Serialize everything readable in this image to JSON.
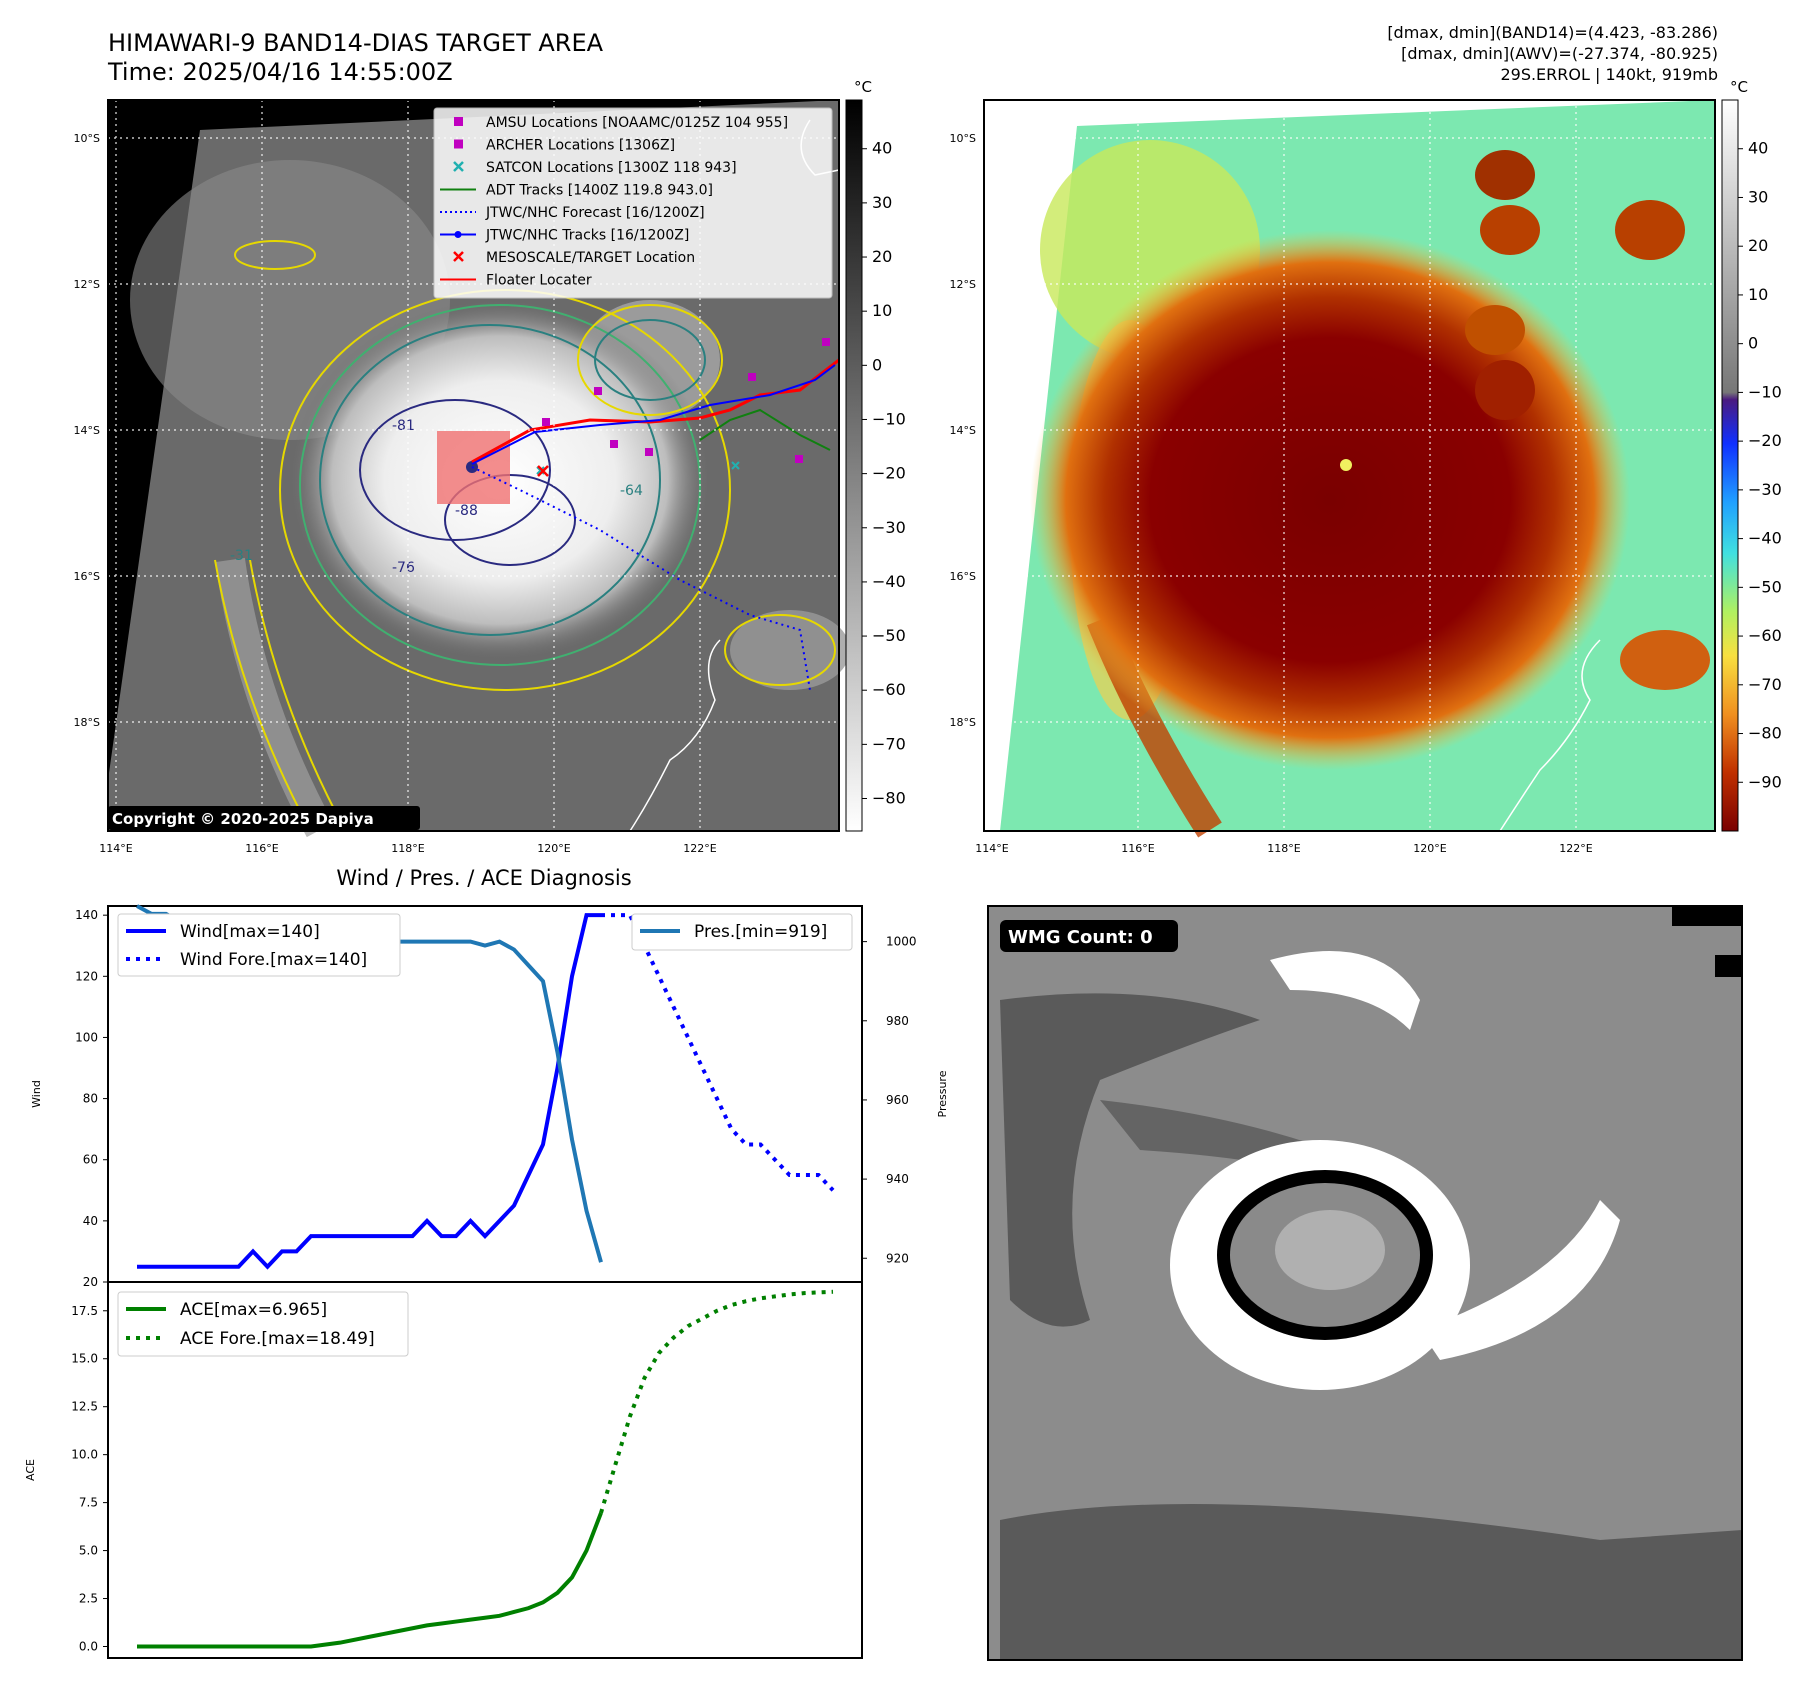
{
  "header": {
    "title_line1": "HIMAWARI-9 BAND14-DIAS TARGET AREA",
    "title_line2": "Time: 2025/04/16 14:55:00Z",
    "info_line1": "[dmax, dmin](BAND14)=(4.423, -83.286)",
    "info_line2": "[dmax, dmin](AWV)=(-27.374, -80.925)",
    "info_line3": "29S.ERROL | 140kt, 919mb"
  },
  "map_axes": {
    "lat_labels": [
      "10°S",
      "12°S",
      "14°S",
      "16°S",
      "18°S"
    ],
    "lon_labels": [
      "114°E",
      "116°E",
      "118°E",
      "120°E",
      "122°E"
    ],
    "copyright": "Copyright © 2020-2025 Dapiya"
  },
  "contour_labels": [
    "-81",
    "-76",
    "-88",
    "-64",
    "-31"
  ],
  "colorbar_left": {
    "unit": "°C",
    "ticks": [
      "40",
      "30",
      "20",
      "10",
      "0",
      "−10",
      "−20",
      "−30",
      "−40",
      "−50",
      "−60",
      "−70",
      "−80"
    ]
  },
  "colorbar_right": {
    "unit": "°C",
    "ticks": [
      "40",
      "30",
      "20",
      "10",
      "0",
      "−10",
      "−20",
      "−30",
      "−40",
      "−50",
      "−60",
      "−70",
      "−80",
      "−90"
    ]
  },
  "legend_map": [
    {
      "label": "AMSU Locations [NOAAMC/0125Z 104 955]",
      "color": "#c000c0",
      "marker": "square"
    },
    {
      "label": "ARCHER Locations [1306Z]",
      "color": "#c000c0",
      "marker": "square"
    },
    {
      "label": "SATCON Locations [1300Z 118 943]",
      "color": "#20b0b0",
      "marker": "x"
    },
    {
      "label": "ADT Tracks [1400Z 119.8 943.0]",
      "color": "#108010",
      "marker": "line"
    },
    {
      "label": "JTWC/NHC Forecast [16/1200Z]",
      "color": "#0000ff",
      "marker": "dotted"
    },
    {
      "label": "JTWC/NHC Tracks [16/1200Z]",
      "color": "#0000ff",
      "marker": "line-dot"
    },
    {
      "label": "MESOSCALE/TARGET Location",
      "color": "#ff0000",
      "marker": "x"
    },
    {
      "label": "Floater Locater",
      "color": "#ff0000",
      "marker": "line"
    }
  ],
  "wmg": {
    "label": "WMG Count: 0"
  },
  "chart_data": [
    {
      "type": "line",
      "title": "Wind / Pres. / ACE Diagnosis",
      "ylabel": "Wind",
      "y2label": "Pressure",
      "ylim": [
        20,
        143
      ],
      "y2lim": [
        914,
        1009
      ],
      "yticks": [
        20,
        40,
        60,
        80,
        100,
        120,
        140
      ],
      "y2ticks": [
        920,
        940,
        960,
        980,
        1000
      ],
      "legend_left": [
        "Wind[max=140]",
        "Wind Fore.[max=140]"
      ],
      "legend_right": [
        "Pres.[min=919]"
      ],
      "series": [
        {
          "name": "Wind[max=140]",
          "color": "#0000ff",
          "style": "solid",
          "x": [
            0,
            1,
            2,
            3,
            4,
            5,
            6,
            7,
            8,
            9,
            10,
            11,
            12,
            13,
            14,
            15,
            16,
            17,
            18,
            19,
            20,
            21,
            22,
            23,
            24,
            25,
            26,
            27,
            28,
            29,
            30,
            31,
            32
          ],
          "values": [
            25,
            25,
            25,
            25,
            25,
            25,
            25,
            25,
            30,
            25,
            30,
            30,
            35,
            35,
            35,
            35,
            35,
            35,
            35,
            35,
            40,
            35,
            35,
            40,
            35,
            40,
            45,
            55,
            65,
            90,
            120,
            140,
            140
          ]
        },
        {
          "name": "Wind Fore.[max=140]",
          "color": "#0000ff",
          "style": "dotted",
          "x": [
            32,
            34,
            35,
            36,
            37,
            38,
            39,
            40,
            41,
            42,
            43,
            44,
            45,
            46,
            47,
            48
          ],
          "values": [
            140,
            140,
            130,
            120,
            110,
            100,
            90,
            80,
            70,
            65,
            65,
            60,
            55,
            55,
            55,
            50
          ]
        },
        {
          "name": "Pres.[min=919]",
          "color": "#1f77b4",
          "style": "solid",
          "axis": "right",
          "x": [
            0,
            1,
            2,
            3,
            4,
            5,
            6,
            7,
            8,
            9,
            10,
            11,
            12,
            13,
            14,
            15,
            16,
            17,
            18,
            19,
            20,
            21,
            22,
            23,
            24,
            25,
            26,
            27,
            28,
            29,
            30,
            31,
            32
          ],
          "values": [
            1009,
            1007,
            1007,
            1005,
            1003,
            1001,
            1001,
            1000,
            1000,
            1000,
            1000,
            1000,
            1000,
            1000,
            1000,
            1000,
            1000,
            1000,
            1000,
            1000,
            1000,
            1000,
            1000,
            1000,
            999,
            1000,
            998,
            994,
            990,
            972,
            950,
            932,
            919
          ]
        }
      ]
    },
    {
      "type": "line",
      "ylabel": "ACE",
      "ylim": [
        -0.6,
        19.0
      ],
      "yticks": [
        0.0,
        2.5,
        5.0,
        7.5,
        10.0,
        12.5,
        15.0,
        17.5
      ],
      "legend": [
        "ACE[max=6.965]",
        "ACE Fore.[max=18.49]"
      ],
      "series": [
        {
          "name": "ACE[max=6.965]",
          "color": "#008000",
          "style": "solid",
          "x": [
            0,
            2,
            4,
            6,
            8,
            10,
            12,
            14,
            16,
            18,
            20,
            21,
            22,
            23,
            24,
            25,
            26,
            27,
            28,
            29,
            30,
            31,
            32
          ],
          "values": [
            0,
            0,
            0,
            0,
            0,
            0,
            0,
            0.2,
            0.5,
            0.8,
            1.1,
            1.2,
            1.3,
            1.4,
            1.5,
            1.6,
            1.8,
            2.0,
            2.3,
            2.8,
            3.6,
            5.0,
            6.965
          ]
        },
        {
          "name": "ACE Fore.[max=18.49]",
          "color": "#008000",
          "style": "dotted",
          "x": [
            32,
            33,
            34,
            35,
            36,
            37,
            38,
            39,
            40,
            41,
            42,
            43,
            44,
            45,
            46,
            47,
            48
          ],
          "values": [
            6.965,
            9.5,
            12.0,
            14.0,
            15.3,
            16.1,
            16.7,
            17.1,
            17.5,
            17.8,
            18.0,
            18.15,
            18.25,
            18.35,
            18.42,
            18.46,
            18.49
          ]
        }
      ]
    }
  ]
}
